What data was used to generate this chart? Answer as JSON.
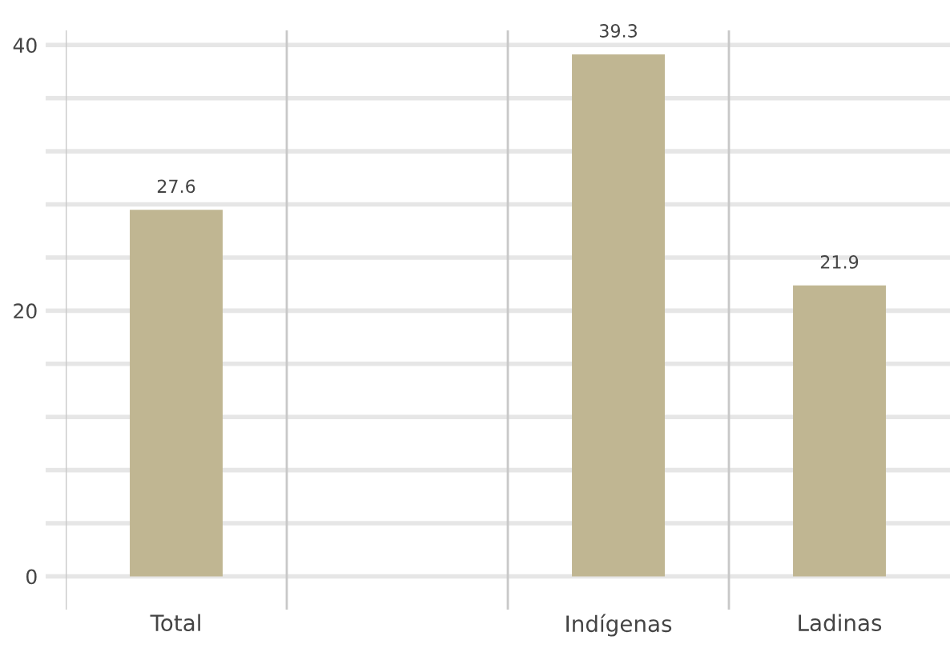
{
  "chart_data": {
    "type": "bar",
    "categories": [
      "Total",
      null,
      "Indígenas",
      "Ladinas"
    ],
    "values": [
      27.6,
      null,
      39.3,
      21.9
    ],
    "color": "#c0b692",
    "data_labels": true,
    "ylim": [
      -2.5,
      41.1
    ],
    "yticks": [
      0,
      {
        "value": 4,
        "label": null
      },
      {
        "value": 8,
        "label": null
      },
      {
        "value": 12,
        "label": null
      },
      {
        "value": 16,
        "label": null
      },
      20,
      {
        "value": 24,
        "label": null
      },
      {
        "value": 28,
        "label": null
      },
      {
        "value": 32,
        "label": null
      },
      {
        "value": 36,
        "label": null
      },
      40
    ],
    "grid": true
  }
}
